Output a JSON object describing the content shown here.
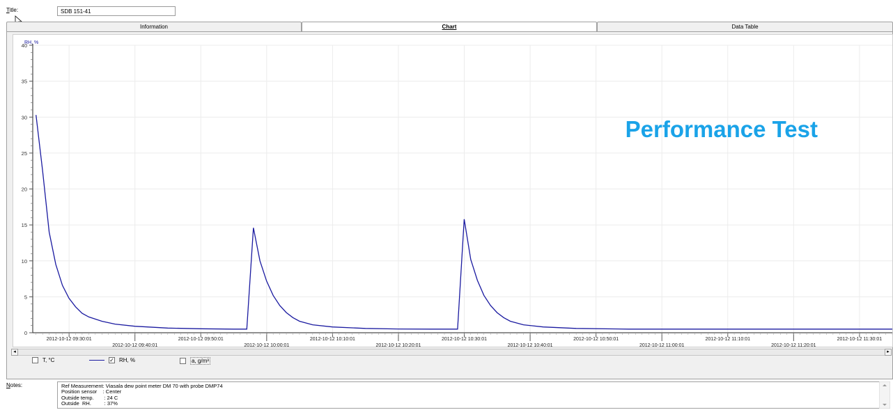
{
  "header": {
    "title_label_first": "T",
    "title_label_rest": "itle:",
    "title_value": "SDB 151-41"
  },
  "tabs": [
    {
      "label": "Information",
      "active": false
    },
    {
      "label": "Chart",
      "active": true
    },
    {
      "label": "Data Table",
      "active": false
    }
  ],
  "chart": {
    "overlay_text": "Performance Test",
    "overlay_color": "#1aa3e8",
    "line_color": "#1a1aa0"
  },
  "chart_data": {
    "type": "line",
    "ylabel": "RH, %",
    "ylim": [
      0,
      40
    ],
    "yticks": [
      0,
      5,
      10,
      15,
      20,
      25,
      30,
      35,
      40
    ],
    "grid": true,
    "xlim": [
      "2012-10-12 09:24:30",
      "2012-10-12 11:35:00"
    ],
    "xticks": [
      "2012-10-12 09:30:01",
      "2012-10-12 09:40:01",
      "2012-10-12 09:50:01",
      "2012-10-12 10:00:01",
      "2012-10-12 10:10:01",
      "2012-10-12 10:20:01",
      "2012-10-12 10:30:01",
      "2012-10-12 10:40:01",
      "2012-10-12 10:50:01",
      "2012-10-12 11:00:01",
      "2012-10-12 11:10:01",
      "2012-10-12 11:20:01",
      "2012-10-12 11:30:01"
    ],
    "series": [
      {
        "name": "RH, %",
        "points": [
          [
            "2012-10-12 09:25:00",
            30.3
          ],
          [
            "2012-10-12 09:26:00",
            22.5
          ],
          [
            "2012-10-12 09:27:00",
            14.0
          ],
          [
            "2012-10-12 09:28:00",
            9.5
          ],
          [
            "2012-10-12 09:29:00",
            6.6
          ],
          [
            "2012-10-12 09:30:00",
            4.8
          ],
          [
            "2012-10-12 09:31:00",
            3.6
          ],
          [
            "2012-10-12 09:32:00",
            2.7
          ],
          [
            "2012-10-12 09:33:00",
            2.2
          ],
          [
            "2012-10-12 09:35:00",
            1.6
          ],
          [
            "2012-10-12 09:37:00",
            1.2
          ],
          [
            "2012-10-12 09:40:00",
            0.9
          ],
          [
            "2012-10-12 09:45:00",
            0.65
          ],
          [
            "2012-10-12 09:50:00",
            0.55
          ],
          [
            "2012-10-12 09:55:00",
            0.5
          ],
          [
            "2012-10-12 09:57:00",
            0.5
          ],
          [
            "2012-10-12 09:58:00",
            14.6
          ],
          [
            "2012-10-12 09:59:00",
            10.0
          ],
          [
            "2012-10-12 10:00:00",
            7.2
          ],
          [
            "2012-10-12 10:01:00",
            5.2
          ],
          [
            "2012-10-12 10:02:00",
            3.8
          ],
          [
            "2012-10-12 10:03:00",
            2.8
          ],
          [
            "2012-10-12 10:04:00",
            2.1
          ],
          [
            "2012-10-12 10:05:00",
            1.6
          ],
          [
            "2012-10-12 10:07:00",
            1.1
          ],
          [
            "2012-10-12 10:10:00",
            0.8
          ],
          [
            "2012-10-12 10:15:00",
            0.6
          ],
          [
            "2012-10-12 10:20:00",
            0.52
          ],
          [
            "2012-10-12 10:25:00",
            0.5
          ],
          [
            "2012-10-12 10:29:00",
            0.5
          ],
          [
            "2012-10-12 10:30:00",
            15.8
          ],
          [
            "2012-10-12 10:31:00",
            10.2
          ],
          [
            "2012-10-12 10:32:00",
            7.3
          ],
          [
            "2012-10-12 10:33:00",
            5.2
          ],
          [
            "2012-10-12 10:34:00",
            3.8
          ],
          [
            "2012-10-12 10:35:00",
            2.8
          ],
          [
            "2012-10-12 10:36:00",
            2.1
          ],
          [
            "2012-10-12 10:37:00",
            1.6
          ],
          [
            "2012-10-12 10:39:00",
            1.1
          ],
          [
            "2012-10-12 10:42:00",
            0.8
          ],
          [
            "2012-10-12 10:47:00",
            0.6
          ],
          [
            "2012-10-12 10:55:00",
            0.5
          ],
          [
            "2012-10-12 11:10:00",
            0.5
          ],
          [
            "2012-10-12 11:35:00",
            0.5
          ]
        ]
      }
    ]
  },
  "legend": [
    {
      "label": "T, °C",
      "checked": false,
      "show_line": false
    },
    {
      "label": "RH, %",
      "checked": true,
      "show_line": true
    },
    {
      "label": "a, g/m³",
      "checked": false,
      "show_line": false
    }
  ],
  "notes": {
    "label_first": "N",
    "label_rest": "otes:",
    "text": "Ref Measurement: Viasala dew point meter DM 70 with probe DMP74\nPosition sensor    : Center\nOutside temp.       : 24 C\nOutside  RH.         : 37%"
  },
  "icons": {
    "cursor": "arrow-cursor-icon",
    "scroll_left": "scroll-left-icon",
    "scroll_right": "scroll-right-icon",
    "scroll_up": "scroll-up-icon",
    "scroll_down": "scroll-down-icon"
  }
}
